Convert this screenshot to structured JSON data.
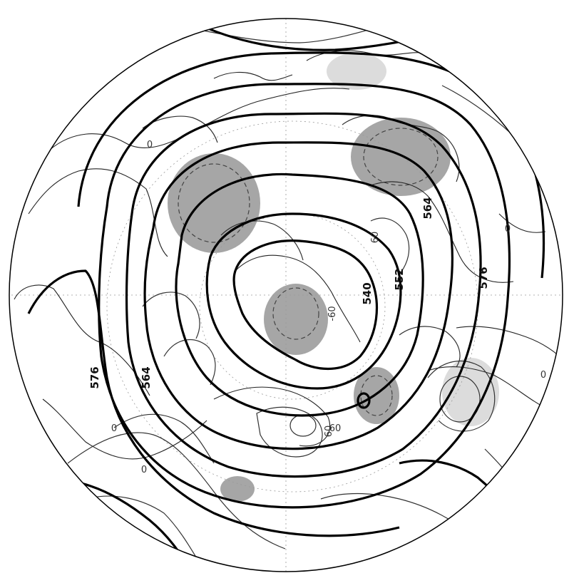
{
  "map": {
    "projection": "polar-stereographic",
    "thick_contour_labels": [
      "576",
      "564",
      "552",
      "540",
      "564",
      "576"
    ],
    "thin_contour_labels": [
      "60",
      "0",
      "60",
      "-60",
      "0",
      "0",
      "0",
      "60",
      "0"
    ],
    "colors": {
      "shade_dark": "#a6a6a6",
      "shade_light": "#dcdcdc",
      "lines": "#000000"
    }
  }
}
